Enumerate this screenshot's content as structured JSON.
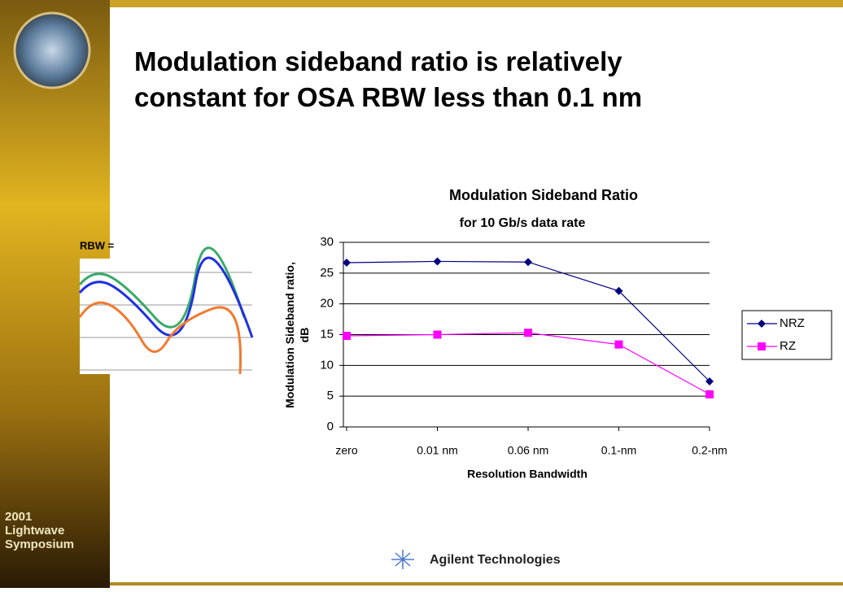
{
  "slide": {
    "title": [
      "Modulation sideband ratio is relatively",
      "constant for OSA RBW less than 0.1 nm"
    ],
    "rbw_label": "RBW =",
    "event": [
      "2001",
      "Lightwave",
      "Symposium"
    ],
    "company": "Agilent Technologies"
  },
  "chart_data": {
    "type": "line",
    "title": "Modulation Sideband Ratio",
    "subtitle": "for 10 Gb/s data rate",
    "x_label": "Resolution Bandwidth",
    "y_label": [
      "Modulation Sideband ratio,",
      "dB"
    ],
    "categories": [
      "zero",
      "0.01 nm",
      "0.06 nm",
      "0.1-nm",
      "0.2-nm"
    ],
    "series": [
      {
        "name": "NRZ",
        "color": "#000080",
        "marker": "diamond",
        "values": [
          26.7,
          26.9,
          26.8,
          22.1,
          7.4
        ]
      },
      {
        "name": "RZ",
        "color": "#ff00ff",
        "marker": "square",
        "values": [
          14.8,
          15.0,
          15.3,
          13.4,
          5.3
        ]
      }
    ],
    "ylim": [
      0,
      30
    ],
    "yticks": [
      0,
      5,
      10,
      15,
      20,
      25,
      30
    ],
    "grid": true,
    "legend": "right"
  }
}
